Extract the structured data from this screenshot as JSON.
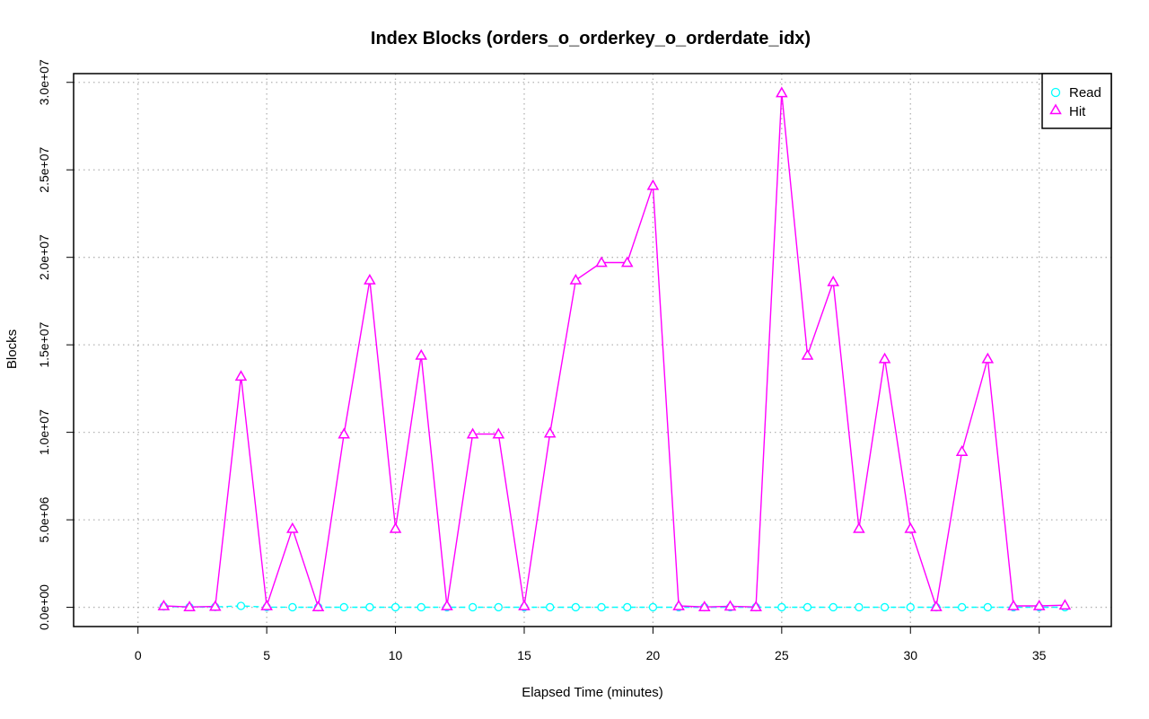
{
  "chart_data": {
    "type": "line",
    "title": "Index Blocks (orders_o_orderkey_o_orderdate_idx)",
    "xlabel": "Elapsed Time (minutes)",
    "ylabel": "Blocks",
    "xlim": [
      -2.5,
      37.8
    ],
    "ylim": [
      -1100000,
      30500000
    ],
    "xticks": [
      0,
      5,
      10,
      15,
      20,
      25,
      30,
      35
    ],
    "xtick_labels": [
      "0",
      "5",
      "10",
      "15",
      "20",
      "25",
      "30",
      "35"
    ],
    "yticks": [
      0,
      5000000,
      10000000,
      15000000,
      20000000,
      25000000,
      30000000
    ],
    "ytick_labels": [
      "0.0e+00",
      "5.0e+06",
      "1.0e+07",
      "1.5e+07",
      "2.0e+07",
      "2.5e+07",
      "3.0e+07"
    ],
    "grid": true,
    "legend_position": "top-right",
    "x": [
      1,
      2,
      3,
      4,
      5,
      6,
      7,
      8,
      9,
      10,
      11,
      12,
      13,
      14,
      15,
      16,
      17,
      18,
      19,
      20,
      21,
      22,
      23,
      24,
      25,
      26,
      27,
      28,
      29,
      30,
      31,
      32,
      33,
      34,
      35,
      36
    ],
    "series": [
      {
        "name": "Read",
        "color": "#00ffff",
        "marker": "circle",
        "line": "dashed",
        "values": [
          50000,
          10000,
          20000,
          80000,
          10000,
          5000,
          5000,
          5000,
          5000,
          5000,
          5000,
          5000,
          5000,
          5000,
          5000,
          5000,
          5000,
          5000,
          5000,
          5000,
          5000,
          5000,
          5000,
          5000,
          5000,
          5000,
          5000,
          5000,
          5000,
          5000,
          5000,
          5000,
          5000,
          5000,
          5000,
          5000
        ]
      },
      {
        "name": "Hit",
        "color": "#ff00ff",
        "marker": "triangle",
        "line": "solid",
        "values": [
          80000,
          20000,
          50000,
          13200000,
          80000,
          4500000,
          20000,
          9900000,
          18700000,
          4500000,
          14400000,
          80000,
          9900000,
          9900000,
          80000,
          9950000,
          18700000,
          19700000,
          19700000,
          24100000,
          80000,
          20000,
          60000,
          20000,
          29400000,
          14400000,
          18600000,
          4500000,
          14200000,
          4500000,
          30000,
          8900000,
          14200000,
          80000,
          80000,
          120000
        ]
      }
    ]
  }
}
